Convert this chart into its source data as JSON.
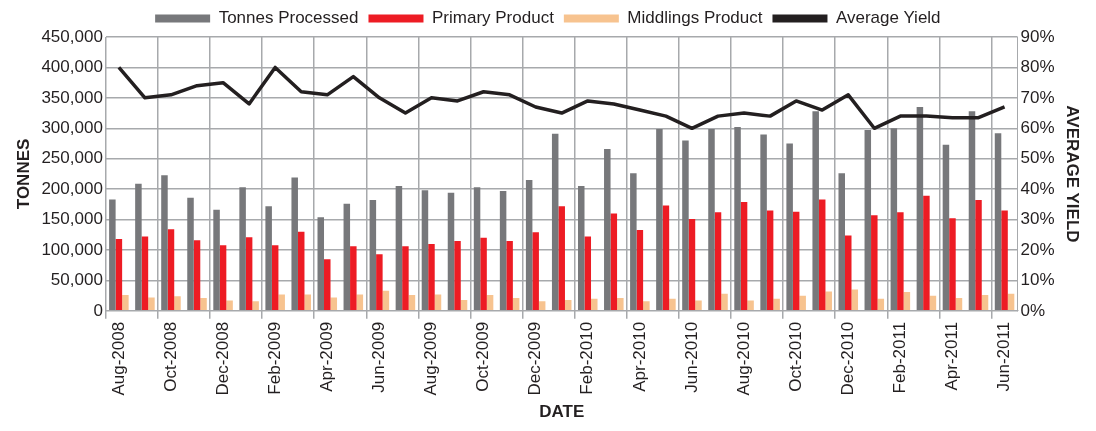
{
  "chart_data": {
    "type": "bar",
    "xlabel": "DATE",
    "ylabel": "TONNES",
    "y2label": "AVERAGE YIELD",
    "categories": [
      "Aug-2008",
      null,
      "Oct-2008",
      null,
      "Dec-2008",
      null,
      "Feb-2009",
      null,
      "Apr-2009",
      null,
      "Jun-2009",
      null,
      "Aug-2009",
      null,
      "Oct-2009",
      null,
      "Dec-2009",
      null,
      "Feb-2010",
      null,
      "Apr-2010",
      null,
      "Jun-2010",
      null,
      "Aug-2010",
      null,
      "Oct-2010",
      null,
      "Dec-2010",
      null,
      "Feb-2011",
      null,
      "Apr-2011",
      null,
      "Jun-2011"
    ],
    "series": [
      {
        "name": "Tonnes Processed",
        "color": "#77787b",
        "values": [
          183000,
          209000,
          223000,
          186000,
          166000,
          203000,
          172000,
          219000,
          154000,
          176000,
          182000,
          205000,
          198000,
          194000,
          203000,
          197000,
          215000,
          291000,
          205000,
          266000,
          226000,
          299000,
          280000,
          299000,
          302000,
          290000,
          275000,
          328000,
          226000,
          297000,
          300000,
          335000,
          273000,
          328000,
          292000
        ]
      },
      {
        "name": "Primary Product",
        "color": "#ed1c24",
        "values": [
          118000,
          122000,
          134000,
          116000,
          108000,
          121000,
          108000,
          130000,
          85000,
          106000,
          93000,
          106000,
          110000,
          115000,
          120000,
          115000,
          129000,
          172000,
          122000,
          160000,
          133000,
          173000,
          151000,
          162000,
          179000,
          165000,
          163000,
          183000,
          124000,
          157000,
          162000,
          189000,
          152000,
          182000,
          165000
        ]
      },
      {
        "name": "Middlings Product",
        "color": "#f7c38f",
        "values": [
          26000,
          22000,
          24000,
          21000,
          17000,
          16000,
          27000,
          27000,
          22000,
          27000,
          33000,
          26000,
          27000,
          18000,
          26000,
          21000,
          16000,
          18000,
          20000,
          21000,
          16000,
          20000,
          17000,
          28000,
          17000,
          20000,
          25000,
          32000,
          35000,
          20000,
          31000,
          25000,
          21000,
          26000,
          28000
        ]
      },
      {
        "name": "Average Yield",
        "type": "line",
        "axis": "y2",
        "color": "#231f20",
        "values": [
          80,
          70,
          71,
          74,
          75,
          68,
          80,
          72,
          71,
          77,
          70,
          65,
          70,
          69,
          72,
          71,
          67,
          65,
          69,
          68,
          66,
          64,
          60,
          64,
          65,
          64,
          69,
          66,
          71,
          60,
          64,
          64,
          63.5,
          63.5,
          67
        ]
      }
    ],
    "ylim": [
      0,
      450000
    ],
    "yticks": [
      {
        "value": 0,
        "label": "0"
      },
      {
        "value": 50000,
        "label": "50,000"
      },
      {
        "value": 100000,
        "label": "100,000"
      },
      {
        "value": 150000,
        "label": "150,000"
      },
      {
        "value": 200000,
        "label": "200,000"
      },
      {
        "value": 250000,
        "label": "250,000"
      },
      {
        "value": 300000,
        "label": "300,000"
      },
      {
        "value": 350000,
        "label": "350,000"
      },
      {
        "value": 400000,
        "label": "400,000"
      },
      {
        "value": 450000,
        "label": "450,000"
      }
    ],
    "y2lim": [
      0,
      90
    ],
    "y2ticks": [
      {
        "value": 0,
        "label": "0%"
      },
      {
        "value": 10,
        "label": "10%"
      },
      {
        "value": 20,
        "label": "20%"
      },
      {
        "value": 30,
        "label": "30%"
      },
      {
        "value": 40,
        "label": "40%"
      },
      {
        "value": 50,
        "label": "50%"
      },
      {
        "value": 60,
        "label": "60%"
      },
      {
        "value": 70,
        "label": "70%"
      },
      {
        "value": 80,
        "label": "80%"
      },
      {
        "value": 90,
        "label": "90%"
      }
    ],
    "grid": true,
    "legend": "top",
    "marker": "none",
    "line_style": "solid"
  }
}
